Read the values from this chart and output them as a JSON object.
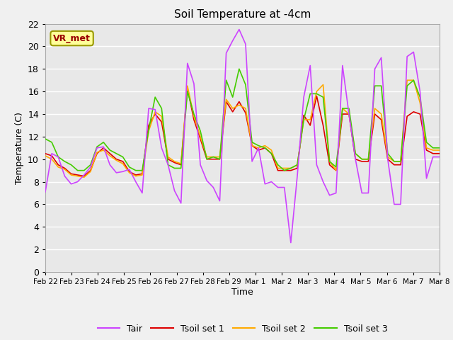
{
  "title": "Soil Temperature at -4cm",
  "xlabel": "Time",
  "ylabel": "Temperature (C)",
  "ylim": [
    0,
    22
  ],
  "yticks": [
    0,
    2,
    4,
    6,
    8,
    10,
    12,
    14,
    16,
    18,
    20,
    22
  ],
  "x_labels": [
    "Feb 22",
    "Feb 23",
    "Feb 24",
    "Feb 25",
    "Feb 26",
    "Feb 27",
    "Feb 28",
    "Feb 29",
    "Mar 1",
    "Mar 2",
    "Mar 3",
    "Mar 4",
    "Mar 5",
    "Mar 6",
    "Mar 7",
    "Mar 8"
  ],
  "annotation_text": "VR_met",
  "annotation_color": "#990000",
  "annotation_bg": "#ffff99",
  "annotation_border": "#999900",
  "colors": {
    "Tair": "#cc44ff",
    "Tsoil set 1": "#dd0000",
    "Tsoil set 2": "#ffaa00",
    "Tsoil set 3": "#44cc00"
  },
  "bg_color": "#e8e8e8",
  "grid_color": "#ffffff",
  "Tair": [
    7.1,
    10.5,
    10.2,
    8.5,
    7.8,
    8.0,
    8.6,
    9.3,
    11.0,
    11.1,
    9.5,
    8.8,
    8.9,
    9.1,
    8.0,
    7.0,
    14.5,
    14.4,
    11.0,
    9.5,
    7.2,
    6.1,
    18.5,
    16.7,
    9.5,
    8.1,
    7.5,
    6.3,
    19.4,
    20.5,
    21.5,
    20.2,
    9.8,
    11.0,
    7.8,
    8.0,
    7.5,
    7.5,
    2.6,
    8.5,
    15.5,
    18.3,
    9.5,
    8.0,
    6.8,
    7.0,
    18.3,
    14.0,
    10.0,
    7.0,
    7.0,
    18.0,
    19.0,
    10.0,
    6.0,
    6.0,
    19.1,
    19.5,
    16.0,
    8.3,
    10.2,
    10.2
  ],
  "Tsoil1": [
    10.5,
    10.3,
    9.5,
    9.2,
    8.7,
    8.6,
    8.5,
    9.0,
    10.5,
    11.0,
    10.5,
    10.0,
    9.8,
    8.9,
    8.6,
    8.7,
    13.0,
    14.0,
    13.3,
    10.0,
    9.7,
    9.5,
    16.3,
    13.5,
    11.8,
    10.0,
    10.0,
    10.0,
    15.1,
    14.2,
    15.1,
    14.1,
    11.2,
    10.8,
    11.0,
    10.5,
    9.0,
    9.0,
    9.0,
    9.2,
    13.9,
    13.0,
    15.6,
    13.0,
    9.5,
    9.0,
    14.0,
    14.0,
    10.0,
    9.8,
    9.8,
    14.0,
    13.5,
    10.0,
    9.5,
    9.5,
    13.8,
    14.2,
    14.0,
    10.8,
    10.5,
    10.5
  ],
  "Tsoil2": [
    10.3,
    10.0,
    9.3,
    9.1,
    8.6,
    8.5,
    8.4,
    8.9,
    10.6,
    10.8,
    10.3,
    9.9,
    9.6,
    8.8,
    8.5,
    8.6,
    12.5,
    14.2,
    13.8,
    10.2,
    9.8,
    9.6,
    16.5,
    13.8,
    12.0,
    10.2,
    10.2,
    10.2,
    15.3,
    14.5,
    14.8,
    14.5,
    11.2,
    11.0,
    11.2,
    10.8,
    9.2,
    9.2,
    9.2,
    9.5,
    13.5,
    13.5,
    16.0,
    16.6,
    9.8,
    9.0,
    14.5,
    14.0,
    10.5,
    10.0,
    10.0,
    14.5,
    14.0,
    10.2,
    9.8,
    9.8,
    17.0,
    17.0,
    15.0,
    11.0,
    10.8,
    10.8
  ],
  "Tsoil3": [
    11.8,
    11.5,
    10.2,
    9.8,
    9.5,
    9.0,
    9.0,
    9.5,
    11.1,
    11.5,
    10.8,
    10.5,
    10.2,
    9.3,
    9.0,
    9.0,
    12.6,
    15.5,
    14.5,
    9.5,
    9.2,
    9.2,
    16.0,
    14.0,
    12.5,
    10.0,
    10.2,
    10.0,
    17.0,
    15.5,
    18.0,
    16.6,
    11.5,
    11.2,
    11.0,
    10.5,
    9.5,
    9.0,
    9.2,
    9.5,
    13.5,
    15.8,
    15.8,
    15.5,
    9.8,
    9.3,
    14.5,
    14.5,
    10.5,
    10.0,
    10.0,
    16.5,
    16.5,
    10.5,
    9.8,
    9.8,
    16.5,
    17.0,
    15.5,
    11.5,
    11.0,
    11.0
  ]
}
